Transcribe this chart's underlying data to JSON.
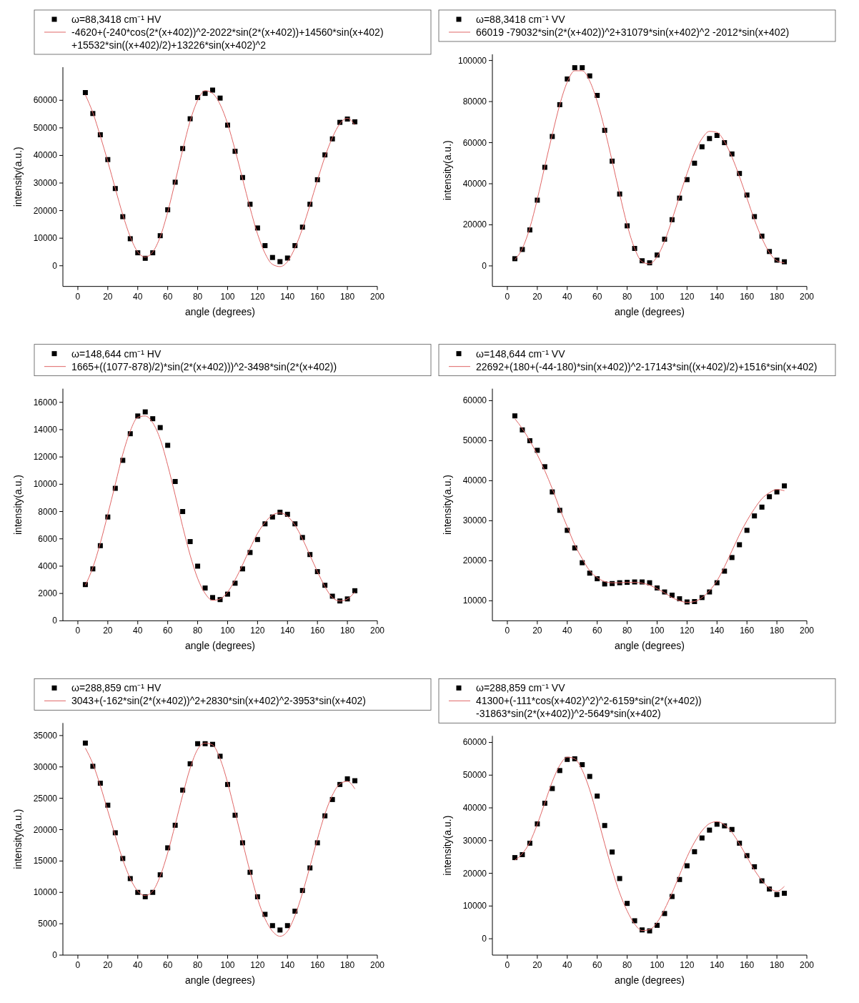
{
  "chart_data": [
    {
      "type": "scatter",
      "xlabel": "angle (degrees)",
      "ylabel": "intensity(a.u.)",
      "xlim": [
        -10,
        200
      ],
      "xticks": [
        0,
        20,
        40,
        60,
        80,
        100,
        120,
        140,
        160,
        180,
        200
      ],
      "ylim": [
        -7500,
        72000
      ],
      "yticks": [
        0,
        10000,
        20000,
        30000,
        40000,
        50000,
        60000
      ],
      "grid": false,
      "legend": "top",
      "x": [
        5,
        10,
        15,
        20,
        25,
        30,
        35,
        40,
        45,
        50,
        55,
        60,
        65,
        70,
        75,
        80,
        85,
        90,
        95,
        100,
        105,
        110,
        115,
        120,
        125,
        130,
        135,
        140,
        145,
        150,
        155,
        160,
        165,
        170,
        175,
        180,
        185
      ],
      "series": [
        {
          "name": "ω=88,3418 cm⁻¹   HV",
          "color": "#000000",
          "marker": "square",
          "values": [
            62800,
            55200,
            47500,
            38500,
            28000,
            17800,
            9800,
            4700,
            2700,
            4700,
            10900,
            20300,
            30300,
            42500,
            53300,
            61000,
            62500,
            63700,
            60800,
            51000,
            41500,
            32000,
            22300,
            13700,
            7300,
            3000,
            1500,
            2800,
            7300,
            14000,
            22300,
            31200,
            40200,
            46000,
            52000,
            53200,
            52200
          ]
        },
        {
          "type": "line",
          "name": "-4620+(-240*cos(2*(x+402))^2-2022*sin(2*(x+402))+14560*sin(x+402)+15532*sin((x+402)/2)+13226*sin(x+402)^2",
          "color": "#e06666",
          "marker": "none",
          "values": [
            62000,
            55500,
            47000,
            37800,
            28000,
            18500,
            10500,
            5000,
            3200,
            5000,
            10500,
            19500,
            30500,
            42000,
            52500,
            60000,
            63500,
            62500,
            58500,
            51500,
            42000,
            31500,
            21000,
            11500,
            4500,
            500,
            -300,
            1500,
            6500,
            13500,
            22000,
            31000,
            39500,
            46500,
            51500,
            53500,
            51000
          ]
        }
      ]
    },
    {
      "type": "scatter",
      "xlabel": "angle (degrees)",
      "ylabel": "intensity(a.u.)",
      "xlim": [
        -10,
        200
      ],
      "xticks": [
        0,
        20,
        40,
        60,
        80,
        100,
        120,
        140,
        160,
        180,
        200
      ],
      "ylim": [
        -10000,
        103000
      ],
      "yticks": [
        0,
        20000,
        40000,
        60000,
        80000,
        100000
      ],
      "grid": false,
      "legend": "top",
      "x": [
        5,
        10,
        15,
        20,
        25,
        30,
        35,
        40,
        45,
        50,
        55,
        60,
        65,
        70,
        75,
        80,
        85,
        90,
        95,
        100,
        105,
        110,
        115,
        120,
        125,
        130,
        135,
        140,
        145,
        150,
        155,
        160,
        165,
        170,
        175,
        180,
        185
      ],
      "series": [
        {
          "name": "ω=88,3418 cm⁻¹   VV",
          "color": "#000000",
          "marker": "square",
          "values": [
            3500,
            8000,
            17500,
            32000,
            48000,
            63000,
            78500,
            91000,
            96500,
            96500,
            92500,
            83000,
            66000,
            51000,
            35000,
            19500,
            8500,
            2500,
            1500,
            5300,
            13000,
            22500,
            33000,
            42000,
            50000,
            58000,
            62000,
            63500,
            60000,
            54500,
            45000,
            34500,
            24000,
            14500,
            7000,
            2800,
            2000
          ]
        },
        {
          "type": "line",
          "name": "66019 -79032*sin(2*(x+402))^2+31079*sin(x+402)^2 -2012*sin(x+402)",
          "color": "#e06666",
          "marker": "none",
          "values": [
            3000,
            8500,
            18500,
            32500,
            48500,
            64000,
            78500,
            89500,
            95000,
            95000,
            90000,
            80000,
            66500,
            51000,
            35000,
            20000,
            8500,
            2000,
            1000,
            4500,
            12000,
            22500,
            34000,
            45000,
            55000,
            62000,
            65500,
            65000,
            60500,
            53000,
            43500,
            33000,
            22500,
            13500,
            6500,
            2500,
            1500
          ]
        }
      ]
    },
    {
      "type": "scatter",
      "xlabel": "angle (degrees)",
      "ylabel": "intensity(a.u.)",
      "xlim": [
        -10,
        200
      ],
      "xticks": [
        0,
        20,
        40,
        60,
        80,
        100,
        120,
        140,
        160,
        180,
        200
      ],
      "ylim": [
        0,
        17000
      ],
      "yticks": [
        0,
        2000,
        4000,
        6000,
        8000,
        10000,
        12000,
        14000,
        16000
      ],
      "grid": false,
      "legend": "top",
      "x": [
        5,
        10,
        15,
        20,
        25,
        30,
        35,
        40,
        45,
        50,
        55,
        60,
        65,
        70,
        75,
        80,
        85,
        90,
        95,
        100,
        105,
        110,
        115,
        120,
        125,
        130,
        135,
        140,
        145,
        150,
        155,
        160,
        165,
        170,
        175,
        180,
        185
      ],
      "series": [
        {
          "name": "ω=148,644 cm⁻¹   HV",
          "color": "#000000",
          "marker": "square",
          "values": [
            2650,
            3800,
            5500,
            7600,
            9700,
            11750,
            13700,
            15000,
            15300,
            14800,
            14150,
            12850,
            10200,
            8000,
            5800,
            4000,
            2400,
            1700,
            1550,
            1950,
            2750,
            3800,
            5000,
            5950,
            7100,
            7600,
            7950,
            7800,
            7100,
            6100,
            4850,
            3600,
            2600,
            1800,
            1450,
            1600,
            2200
          ]
        },
        {
          "type": "line",
          "name": "1665+((1077-878)/2)*sin(2*(x+402)))^2-3498*sin(2*(x+402))",
          "color": "#e06666",
          "marker": "none",
          "values": [
            2600,
            3900,
            5700,
            7800,
            10000,
            12200,
            13900,
            14900,
            15000,
            14500,
            13300,
            11400,
            9200,
            6900,
            4800,
            3100,
            2000,
            1500,
            1600,
            2100,
            3000,
            4100,
            5300,
            6400,
            7200,
            7750,
            7900,
            7650,
            7000,
            6000,
            4800,
            3600,
            2500,
            1700,
            1450,
            1600,
            2100
          ]
        }
      ]
    },
    {
      "type": "scatter",
      "xlabel": "angle (degrees)",
      "ylabel": "intensity(a.u.)",
      "xlim": [
        -10,
        200
      ],
      "xticks": [
        0,
        20,
        40,
        60,
        80,
        100,
        120,
        140,
        160,
        180,
        200
      ],
      "ylim": [
        5000,
        63000
      ],
      "yticks": [
        10000,
        20000,
        30000,
        40000,
        50000,
        60000
      ],
      "grid": false,
      "legend": "top",
      "x": [
        5,
        10,
        15,
        20,
        25,
        30,
        35,
        40,
        45,
        50,
        55,
        60,
        65,
        70,
        75,
        80,
        85,
        90,
        95,
        100,
        105,
        110,
        115,
        120,
        125,
        130,
        135,
        140,
        145,
        150,
        155,
        160,
        165,
        170,
        175,
        180,
        185
      ],
      "series": [
        {
          "name": "ω=148,644 cm⁻¹   VV",
          "color": "#000000",
          "marker": "square",
          "values": [
            56200,
            52700,
            50000,
            47600,
            43500,
            37200,
            32600,
            27600,
            23200,
            19500,
            16900,
            15500,
            14200,
            14300,
            14500,
            14600,
            14700,
            14700,
            14500,
            13200,
            12200,
            11400,
            10500,
            9700,
            9800,
            10800,
            12200,
            14500,
            17400,
            20800,
            24000,
            27600,
            31200,
            33400,
            36000,
            37200,
            38700
          ]
        },
        {
          "type": "line",
          "name": "22692+(180+(-44-180)*sin(x+402))^2-17143*sin((x+402)/2)+1516*sin(x+402)",
          "color": "#e06666",
          "marker": "none",
          "values": [
            55500,
            53000,
            50000,
            46500,
            42500,
            38000,
            33000,
            28500,
            24000,
            20500,
            17500,
            15800,
            14800,
            14500,
            14500,
            14600,
            14600,
            14400,
            13900,
            13000,
            12000,
            10800,
            10000,
            9600,
            9800,
            10800,
            12500,
            15000,
            18500,
            22500,
            26500,
            30000,
            33000,
            35500,
            37000,
            37800,
            37500
          ]
        }
      ]
    },
    {
      "type": "scatter",
      "xlabel": "angle (degrees)",
      "ylabel": "intensity(a.u.)",
      "xlim": [
        -10,
        200
      ],
      "xticks": [
        0,
        20,
        40,
        60,
        80,
        100,
        120,
        140,
        160,
        180,
        200
      ],
      "ylim": [
        0,
        37000
      ],
      "yticks": [
        0,
        5000,
        10000,
        15000,
        20000,
        25000,
        30000,
        35000
      ],
      "grid": false,
      "legend": "top",
      "x": [
        5,
        10,
        15,
        20,
        25,
        30,
        35,
        40,
        45,
        50,
        55,
        60,
        65,
        70,
        75,
        80,
        85,
        90,
        95,
        100,
        105,
        110,
        115,
        120,
        125,
        130,
        135,
        140,
        145,
        150,
        155,
        160,
        165,
        170,
        175,
        180,
        185
      ],
      "series": [
        {
          "name": "ω=288,859 cm⁻¹   HV",
          "color": "#000000",
          "marker": "square",
          "values": [
            33800,
            30100,
            27400,
            23900,
            19500,
            15400,
            12200,
            10000,
            9300,
            10000,
            12800,
            17100,
            20700,
            26300,
            30500,
            33700,
            33700,
            33600,
            31700,
            27200,
            22300,
            17900,
            13200,
            9300,
            6500,
            4700,
            4000,
            4700,
            7000,
            10300,
            13900,
            17900,
            22200,
            24800,
            27200,
            28100,
            27800
          ]
        },
        {
          "type": "line",
          "name": "3043+(-162*sin(2*(x+402))^2+2830*sin(x+402)^2-3953*sin(x+402)",
          "color": "#e06666",
          "marker": "none",
          "values": [
            33000,
            30500,
            27000,
            23000,
            19000,
            15200,
            12200,
            10200,
            9500,
            10200,
            12600,
            16300,
            20800,
            25500,
            29800,
            32800,
            33800,
            33500,
            31300,
            27500,
            22800,
            18000,
            13300,
            9000,
            5800,
            3800,
            3000,
            3800,
            6300,
            9900,
            14100,
            18500,
            22500,
            25500,
            27300,
            27700,
            26500
          ]
        }
      ]
    },
    {
      "type": "scatter",
      "xlabel": "angle (degrees)",
      "ylabel": "intensity(a.u.)",
      "xlim": [
        -10,
        200
      ],
      "xticks": [
        0,
        20,
        40,
        60,
        80,
        100,
        120,
        140,
        160,
        180,
        200
      ],
      "ylim": [
        -5000,
        62000
      ],
      "yticks": [
        0,
        10000,
        20000,
        30000,
        40000,
        50000,
        60000
      ],
      "grid": false,
      "legend": "top",
      "x": [
        5,
        10,
        15,
        20,
        25,
        30,
        35,
        40,
        45,
        50,
        55,
        60,
        65,
        70,
        75,
        80,
        85,
        90,
        95,
        100,
        105,
        110,
        115,
        120,
        125,
        130,
        135,
        140,
        145,
        150,
        155,
        160,
        165,
        170,
        175,
        180,
        185
      ],
      "series": [
        {
          "name": "ω=288,859 cm⁻¹   VV",
          "color": "#000000",
          "marker": "square",
          "values": [
            24800,
            25700,
            29200,
            35100,
            41400,
            45900,
            51400,
            54800,
            55000,
            53200,
            49600,
            43600,
            34600,
            26500,
            18400,
            10800,
            5500,
            2700,
            2400,
            4100,
            7700,
            12900,
            18100,
            22300,
            26600,
            30800,
            33200,
            35000,
            34500,
            33400,
            29200,
            25400,
            22000,
            17700,
            15200,
            13500,
            13900
          ]
        },
        {
          "type": "line",
          "name": "41300+(-111*cos(x+402)^2)^2-6159*sin(2*(x+402))-31863*sin(2*(x+402))^2-5649*sin(x+402)",
          "color": "#e06666",
          "marker": "none",
          "values": [
            24000,
            26000,
            29500,
            35000,
            41500,
            48000,
            53000,
            55500,
            55000,
            51500,
            45500,
            37500,
            29000,
            21000,
            14000,
            8500,
            4500,
            2500,
            2800,
            5000,
            9000,
            14000,
            19500,
            25000,
            29500,
            33000,
            35200,
            35800,
            34800,
            32500,
            29000,
            25000,
            21000,
            17800,
            15500,
            14500,
            16000
          ]
        }
      ]
    }
  ]
}
